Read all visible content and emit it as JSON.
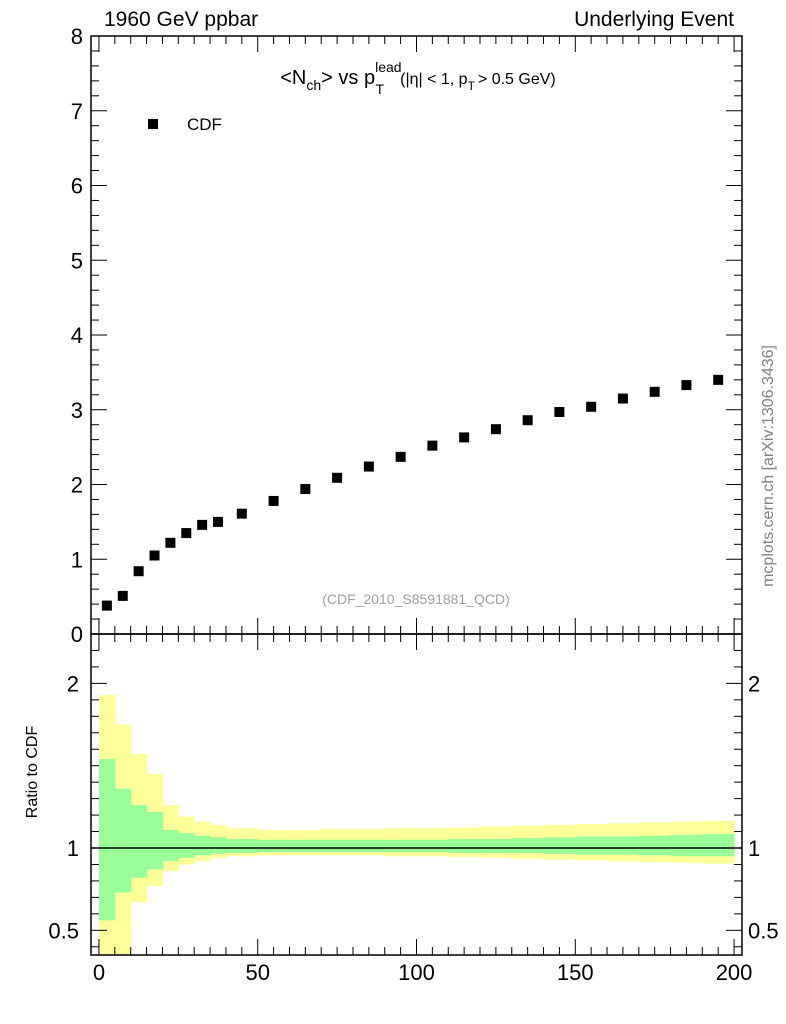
{
  "header": {
    "left": "1960 GeV ppbar",
    "right": "Underlying Event"
  },
  "side_note": "mcplots.cern.ch [arXiv:1306.3436]",
  "chart_data": [
    {
      "type": "scatter",
      "title_parts": {
        "a": "<N",
        "a_sub": "ch",
        "b": "> vs p",
        "b_sup": "lead",
        "b_sub": "T",
        "c": "(|η| < 1, p",
        "c_sub": "T",
        "d": "> 0.5 GeV)"
      },
      "xlim": [
        -2.5,
        202.5
      ],
      "ylim": [
        0,
        8
      ],
      "y_ticks": [
        0,
        1,
        2,
        3,
        4,
        5,
        6,
        7,
        8
      ],
      "y_tick_labels": [
        "0",
        "1",
        "2",
        "3",
        "4",
        "5",
        "6",
        "7",
        "8"
      ],
      "watermark": "(CDF_2010_S8591881_QCD)",
      "legend": {
        "position": "top-left",
        "label": "CDF"
      },
      "series": [
        {
          "name": "CDF",
          "color": "#000000",
          "marker": "square",
          "x": [
            2.5,
            7.5,
            12.5,
            17.5,
            22.5,
            27.5,
            32.5,
            37.5,
            45,
            55,
            65,
            75,
            85,
            95,
            105,
            115,
            125,
            135,
            145,
            155,
            165,
            175,
            185,
            195
          ],
          "y": [
            0.38,
            0.51,
            0.84,
            1.05,
            1.22,
            1.35,
            1.46,
            1.5,
            1.61,
            1.78,
            1.94,
            2.09,
            2.24,
            2.37,
            2.52,
            2.63,
            2.74,
            2.86,
            2.97,
            3.04,
            3.15,
            3.24,
            3.33,
            3.4
          ]
        }
      ]
    },
    {
      "type": "area",
      "ylabel": "Ratio to CDF",
      "xlim": [
        -2.5,
        202.5
      ],
      "ylim": [
        0.35,
        2.3
      ],
      "x_ticks": [
        0,
        50,
        100,
        150,
        200
      ],
      "x_tick_labels": [
        "0",
        "50",
        "100",
        "150",
        "200"
      ],
      "y_ticks": [
        0.5,
        1,
        2
      ],
      "y_tick_labels": [
        "0.5",
        "1",
        "2"
      ],
      "reference_line": 1,
      "bands": {
        "bin_edges": [
          0,
          5,
          10,
          15,
          20,
          25,
          30,
          35,
          40,
          50,
          60,
          70,
          80,
          90,
          100,
          110,
          120,
          130,
          140,
          150,
          160,
          170,
          180,
          190,
          200
        ],
        "outer_color": "#ffff99",
        "inner_color": "#99ff99",
        "outer": [
          [
            0.3,
            1.93
          ],
          [
            0.3,
            1.75
          ],
          [
            0.67,
            1.57
          ],
          [
            0.77,
            1.45
          ],
          [
            0.86,
            1.26
          ],
          [
            0.9,
            1.19
          ],
          [
            0.92,
            1.16
          ],
          [
            0.94,
            1.14
          ],
          [
            0.95,
            1.12
          ],
          [
            0.955,
            1.11
          ],
          [
            0.955,
            1.11
          ],
          [
            0.955,
            1.115
          ],
          [
            0.955,
            1.115
          ],
          [
            0.95,
            1.12
          ],
          [
            0.95,
            1.12
          ],
          [
            0.945,
            1.125
          ],
          [
            0.94,
            1.13
          ],
          [
            0.935,
            1.135
          ],
          [
            0.93,
            1.14
          ],
          [
            0.925,
            1.145
          ],
          [
            0.92,
            1.15
          ],
          [
            0.915,
            1.155
          ],
          [
            0.91,
            1.16
          ],
          [
            0.905,
            1.165
          ]
        ],
        "inner": [
          [
            0.56,
            1.54
          ],
          [
            0.73,
            1.36
          ],
          [
            0.82,
            1.26
          ],
          [
            0.87,
            1.22
          ],
          [
            0.92,
            1.11
          ],
          [
            0.94,
            1.09
          ],
          [
            0.955,
            1.075
          ],
          [
            0.965,
            1.065
          ],
          [
            0.97,
            1.055
          ],
          [
            0.975,
            1.05
          ],
          [
            0.975,
            1.05
          ],
          [
            0.975,
            1.05
          ],
          [
            0.975,
            1.05
          ],
          [
            0.975,
            1.05
          ],
          [
            0.975,
            1.05
          ],
          [
            0.97,
            1.055
          ],
          [
            0.97,
            1.055
          ],
          [
            0.97,
            1.06
          ],
          [
            0.965,
            1.065
          ],
          [
            0.96,
            1.07
          ],
          [
            0.96,
            1.07
          ],
          [
            0.955,
            1.075
          ],
          [
            0.95,
            1.08
          ],
          [
            0.95,
            1.085
          ]
        ]
      }
    }
  ]
}
